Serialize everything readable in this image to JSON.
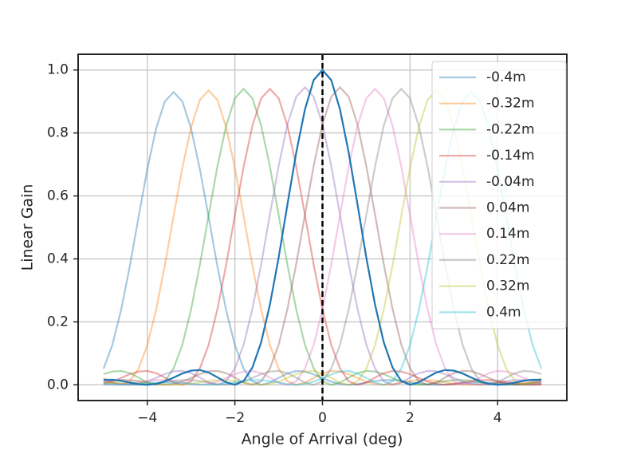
{
  "chart_data": {
    "type": "line",
    "x_label": "Angle of Arrival (deg)",
    "y_label": "Linear Gain",
    "x": [
      -5.0,
      -4.8,
      -4.6,
      -4.4,
      -4.2,
      -4.0,
      -3.8,
      -3.6,
      -3.4,
      -3.2,
      -3.0,
      -2.8,
      -2.6,
      -2.4,
      -2.2,
      -2.0,
      -1.8,
      -1.6,
      -1.4,
      -1.2,
      -1.0,
      -0.8,
      -0.6,
      -0.4,
      -0.2,
      0.0,
      0.2,
      0.4,
      0.6,
      0.8,
      1.0,
      1.2,
      1.4,
      1.6,
      1.8,
      2.0,
      2.2,
      2.4,
      2.6,
      2.8,
      3.0,
      3.2,
      3.4,
      3.6,
      3.8,
      4.0,
      4.2,
      4.4,
      4.6,
      4.8,
      5.0
    ],
    "series": [
      {
        "name": "-0.4m",
        "color": "#1f77b4",
        "opacity": 0.4,
        "values": [
          0.051,
          0.126,
          0.237,
          0.377,
          0.533,
          0.685,
          0.814,
          0.9,
          0.93,
          0.9,
          0.814,
          0.685,
          0.533,
          0.377,
          0.237,
          0.126,
          0.051,
          0.011,
          0,
          0.007,
          0.022,
          0.036,
          0.044,
          0.042,
          0.033,
          0.021,
          0.01,
          0.003,
          0,
          0.002,
          0.007,
          0.012,
          0.015,
          0.015,
          0.013,
          0.008,
          0.004,
          0.001,
          0,
          0.001,
          0.003,
          0.006,
          0.007,
          0.007,
          0.007,
          0.006,
          0.004,
          0.001,
          0,
          0.001,
          0.002
        ]
      },
      {
        "name": "-0.32m",
        "color": "#ff7f0e",
        "opacity": 0.4,
        "values": [
          0.022,
          0.007,
          0,
          0.011,
          0.051,
          0.126,
          0.238,
          0.379,
          0.536,
          0.689,
          0.818,
          0.905,
          0.935,
          0.905,
          0.818,
          0.689,
          0.536,
          0.379,
          0.238,
          0.126,
          0.051,
          0.011,
          0,
          0.007,
          0.022,
          0.036,
          0.044,
          0.042,
          0.034,
          0.022,
          0.01,
          0.003,
          0,
          0.002,
          0.007,
          0.012,
          0.015,
          0.015,
          0.013,
          0.008,
          0.004,
          0.001,
          0,
          0.001,
          0.003,
          0.006,
          0.007,
          0.007,
          0.007,
          0.006,
          0.004
        ]
      },
      {
        "name": "-0.22m",
        "color": "#2ca02c",
        "opacity": 0.4,
        "values": [
          0.034,
          0.042,
          0.044,
          0.037,
          0.023,
          0.007,
          0,
          0.011,
          0.052,
          0.127,
          0.24,
          0.381,
          0.539,
          0.693,
          0.823,
          0.91,
          0.94,
          0.91,
          0.823,
          0.693,
          0.539,
          0.381,
          0.24,
          0.127,
          0.052,
          0.011,
          0,
          0.007,
          0.023,
          0.037,
          0.044,
          0.042,
          0.034,
          0.022,
          0.01,
          0.003,
          0,
          0.002,
          0.007,
          0.012,
          0.015,
          0.015,
          0.013,
          0.008,
          0.004,
          0.001,
          0,
          0.001,
          0.003,
          0.006,
          0.007
        ]
      },
      {
        "name": "-0.14m",
        "color": "#d62728",
        "opacity": 0.4,
        "values": [
          0.003,
          0.01,
          0.022,
          0.034,
          0.042,
          0.044,
          0.037,
          0.023,
          0.007,
          0,
          0.011,
          0.052,
          0.127,
          0.24,
          0.381,
          0.539,
          0.693,
          0.823,
          0.91,
          0.94,
          0.91,
          0.823,
          0.693,
          0.539,
          0.381,
          0.24,
          0.127,
          0.052,
          0.011,
          0,
          0.007,
          0.023,
          0.037,
          0.044,
          0.042,
          0.034,
          0.022,
          0.01,
          0.003,
          0,
          0.002,
          0.007,
          0.012,
          0.015,
          0.015,
          0.013,
          0.008,
          0.004,
          0.001,
          0,
          0.001
        ]
      },
      {
        "name": "-0.04m",
        "color": "#9467bd",
        "opacity": 0.4,
        "values": [
          0.012,
          0.007,
          0.002,
          0,
          0.003,
          0.01,
          0.022,
          0.034,
          0.043,
          0.044,
          0.037,
          0.023,
          0.007,
          0,
          0.011,
          0.052,
          0.128,
          0.241,
          0.383,
          0.541,
          0.696,
          0.827,
          0.915,
          0.945,
          0.915,
          0.827,
          0.696,
          0.541,
          0.383,
          0.241,
          0.128,
          0.052,
          0.011,
          0,
          0.007,
          0.023,
          0.037,
          0.044,
          0.043,
          0.034,
          0.022,
          0.01,
          0.003,
          0,
          0.002,
          0.007,
          0.012,
          0.015,
          0.015,
          0.013,
          0.008
        ]
      },
      {
        "name": "0.04m",
        "color": "#8c564b",
        "opacity": 0.4,
        "values": [
          0.008,
          0.013,
          0.015,
          0.015,
          0.012,
          0.007,
          0.002,
          0,
          0.003,
          0.01,
          0.022,
          0.034,
          0.043,
          0.044,
          0.037,
          0.023,
          0.007,
          0,
          0.011,
          0.052,
          0.128,
          0.241,
          0.383,
          0.541,
          0.696,
          0.827,
          0.915,
          0.945,
          0.915,
          0.827,
          0.696,
          0.541,
          0.383,
          0.241,
          0.128,
          0.052,
          0.011,
          0,
          0.007,
          0.023,
          0.037,
          0.044,
          0.043,
          0.034,
          0.022,
          0.01,
          0.003,
          0,
          0.002,
          0.007,
          0.012
        ]
      },
      {
        "name": "0.14m",
        "color": "#e377c2",
        "opacity": 0.4,
        "values": [
          0.001,
          0,
          0.001,
          0.004,
          0.008,
          0.013,
          0.015,
          0.015,
          0.012,
          0.007,
          0.002,
          0,
          0.003,
          0.01,
          0.022,
          0.034,
          0.042,
          0.044,
          0.037,
          0.023,
          0.007,
          0,
          0.011,
          0.052,
          0.127,
          0.24,
          0.381,
          0.539,
          0.693,
          0.823,
          0.91,
          0.94,
          0.91,
          0.823,
          0.693,
          0.539,
          0.381,
          0.24,
          0.127,
          0.052,
          0.011,
          0,
          0.007,
          0.023,
          0.037,
          0.044,
          0.042,
          0.034,
          0.022,
          0.01,
          0.003
        ]
      },
      {
        "name": "0.22m",
        "color": "#7f7f7f",
        "opacity": 0.4,
        "values": [
          0.007,
          0.006,
          0.003,
          0.001,
          0,
          0.001,
          0.004,
          0.008,
          0.013,
          0.015,
          0.015,
          0.012,
          0.007,
          0.002,
          0,
          0.003,
          0.01,
          0.022,
          0.034,
          0.042,
          0.044,
          0.037,
          0.023,
          0.007,
          0,
          0.011,
          0.052,
          0.127,
          0.24,
          0.381,
          0.539,
          0.693,
          0.823,
          0.91,
          0.94,
          0.91,
          0.823,
          0.693,
          0.539,
          0.381,
          0.24,
          0.127,
          0.052,
          0.011,
          0,
          0.007,
          0.023,
          0.037,
          0.044,
          0.042,
          0.034
        ]
      },
      {
        "name": "0.32m",
        "color": "#bcbd22",
        "opacity": 0.4,
        "values": [
          0.004,
          0.006,
          0.007,
          0.007,
          0.007,
          0.006,
          0.003,
          0.001,
          0,
          0.001,
          0.004,
          0.008,
          0.013,
          0.015,
          0.015,
          0.012,
          0.007,
          0.002,
          0,
          0.003,
          0.01,
          0.022,
          0.034,
          0.042,
          0.044,
          0.036,
          0.022,
          0.007,
          0,
          0.011,
          0.051,
          0.126,
          0.238,
          0.379,
          0.536,
          0.689,
          0.818,
          0.905,
          0.935,
          0.905,
          0.818,
          0.689,
          0.536,
          0.379,
          0.238,
          0.126,
          0.051,
          0.011,
          0,
          0.007,
          0.022
        ]
      },
      {
        "name": "0.4m",
        "color": "#17becf",
        "opacity": 0.4,
        "values": [
          0.002,
          0.001,
          0,
          0.001,
          0.004,
          0.006,
          0.007,
          0.007,
          0.007,
          0.006,
          0.003,
          0.001,
          0,
          0.001,
          0.004,
          0.008,
          0.013,
          0.015,
          0.015,
          0.012,
          0.007,
          0.002,
          0,
          0.003,
          0.01,
          0.021,
          0.033,
          0.042,
          0.044,
          0.036,
          0.022,
          0.007,
          0,
          0.011,
          0.051,
          0.126,
          0.237,
          0.377,
          0.533,
          0.685,
          0.814,
          0.9,
          0.93,
          0.9,
          0.814,
          0.685,
          0.533,
          0.377,
          0.237,
          0.126,
          0.051
        ]
      },
      {
        "color": "#1f77b4",
        "opacity": 1,
        "values": [
          0.016,
          0.016,
          0.013,
          0.007,
          0.002,
          0,
          0.003,
          0.011,
          0.023,
          0.036,
          0.045,
          0.047,
          0.039,
          0.024,
          0.008,
          0,
          0.012,
          0.055,
          0.135,
          0.255,
          0.405,
          0.573,
          0.737,
          0.875,
          0.968,
          1,
          0.968,
          0.875,
          0.737,
          0.573,
          0.405,
          0.255,
          0.135,
          0.055,
          0.012,
          0,
          0.008,
          0.024,
          0.039,
          0.047,
          0.045,
          0.036,
          0.023,
          0.011,
          0.003,
          0,
          0.002,
          0.007,
          0.013,
          0.016,
          0.016
        ]
      }
    ],
    "vline": {
      "x": 0,
      "color": "#000000"
    },
    "xlim": [
      -5.58,
      5.58
    ],
    "ylim": [
      -0.05,
      1.05
    ],
    "xticks": [
      {
        "value": -4,
        "label": "−4"
      },
      {
        "value": -2,
        "label": "−2"
      },
      0,
      2,
      4
    ],
    "yticks": [
      {
        "value": 0,
        "label": "0.0"
      },
      0.2,
      0.4,
      0.6,
      0.8,
      {
        "value": 1,
        "label": "1.0"
      }
    ],
    "grid": true,
    "legend": "upper right"
  }
}
